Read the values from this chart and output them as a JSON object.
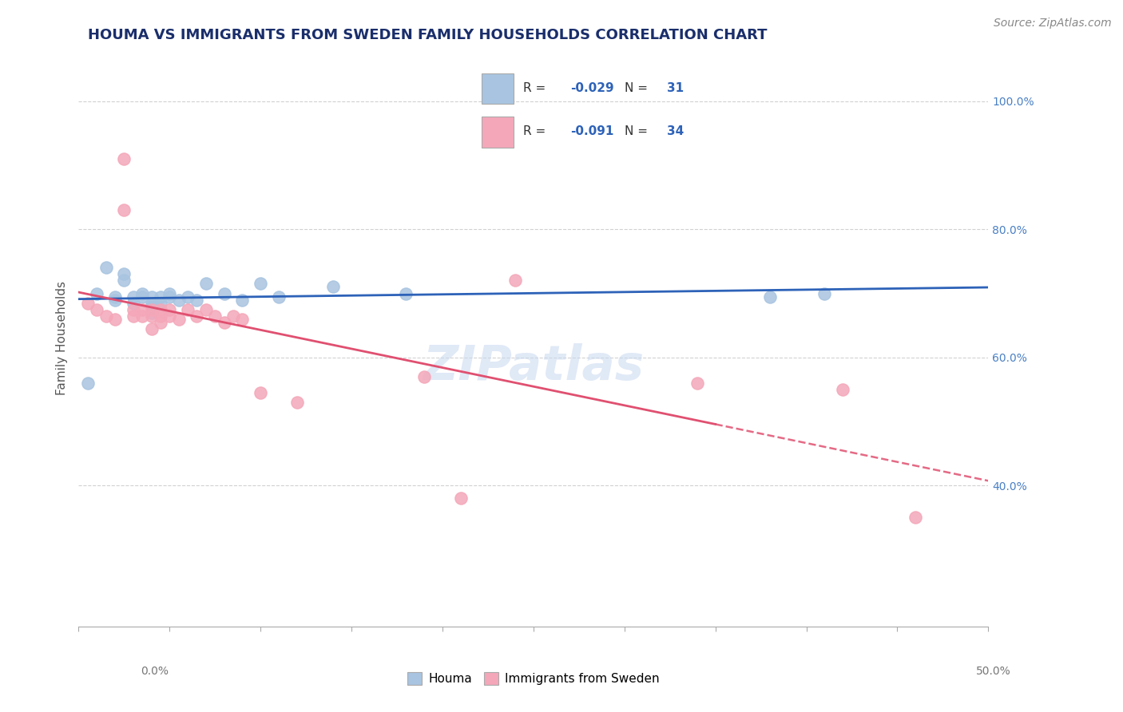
{
  "title": "HOUMA VS IMMIGRANTS FROM SWEDEN FAMILY HOUSEHOLDS CORRELATION CHART",
  "source": "Source: ZipAtlas.com",
  "ylabel": "Family Households",
  "xlim": [
    0,
    0.5
  ],
  "ylim": [
    0.18,
    1.08
  ],
  "xticks": [
    0.0,
    0.1,
    0.2,
    0.3,
    0.4,
    0.5
  ],
  "xtick_labels_ends": [
    "0.0%",
    "50.0%"
  ],
  "yticks": [
    0.4,
    0.6,
    0.8,
    1.0
  ],
  "ytick_labels": [
    "40.0%",
    "60.0%",
    "80.0%",
    "100.0%"
  ],
  "legend_houma": "Houma",
  "legend_sweden": "Immigrants from Sweden",
  "houma_R": -0.029,
  "houma_N": 31,
  "sweden_R": -0.091,
  "sweden_N": 34,
  "houma_color": "#a8c4e0",
  "sweden_color": "#f4a7b9",
  "houma_line_color": "#2d62b8",
  "sweden_line_color": "#e05070",
  "background_color": "#ffffff",
  "grid_color": "#cccccc",
  "title_color": "#1a2e6b",
  "source_color": "#888888",
  "axis_label_color": "#555555",
  "yaxis_tick_color": "#4a80c4",
  "xaxis_tick_color": "#777777",
  "houma_x": [
    0.005,
    0.01,
    0.015,
    0.02,
    0.02,
    0.025,
    0.025,
    0.03,
    0.03,
    0.035,
    0.035,
    0.04,
    0.04,
    0.04,
    0.04,
    0.045,
    0.045,
    0.05,
    0.05,
    0.055,
    0.06,
    0.065,
    0.07,
    0.08,
    0.09,
    0.1,
    0.11,
    0.14,
    0.18,
    0.38,
    0.41
  ],
  "houma_y": [
    0.56,
    0.7,
    0.74,
    0.695,
    0.69,
    0.72,
    0.73,
    0.695,
    0.685,
    0.7,
    0.695,
    0.695,
    0.685,
    0.68,
    0.67,
    0.695,
    0.685,
    0.7,
    0.695,
    0.69,
    0.695,
    0.69,
    0.715,
    0.7,
    0.69,
    0.715,
    0.695,
    0.71,
    0.7,
    0.695,
    0.7
  ],
  "sweden_x": [
    0.005,
    0.01,
    0.015,
    0.02,
    0.025,
    0.025,
    0.03,
    0.03,
    0.035,
    0.035,
    0.04,
    0.04,
    0.04,
    0.045,
    0.045,
    0.045,
    0.05,
    0.05,
    0.055,
    0.06,
    0.065,
    0.07,
    0.075,
    0.08,
    0.085,
    0.09,
    0.1,
    0.12,
    0.19,
    0.21,
    0.24,
    0.34,
    0.42,
    0.46
  ],
  "sweden_y": [
    0.685,
    0.675,
    0.665,
    0.66,
    0.91,
    0.83,
    0.675,
    0.665,
    0.675,
    0.665,
    0.675,
    0.665,
    0.645,
    0.675,
    0.665,
    0.655,
    0.675,
    0.665,
    0.66,
    0.675,
    0.665,
    0.675,
    0.665,
    0.655,
    0.665,
    0.66,
    0.545,
    0.53,
    0.57,
    0.38,
    0.72,
    0.56,
    0.55,
    0.35
  ],
  "watermark": "ZIPatlas",
  "title_fontsize": 13,
  "axis_fontsize": 11,
  "tick_fontsize": 10,
  "legend_fontsize": 11,
  "source_fontsize": 10
}
